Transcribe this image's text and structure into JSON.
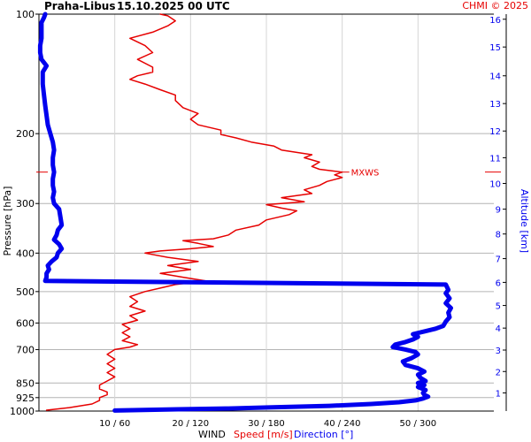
{
  "header": {
    "station": "Praha-Libus",
    "datetime": "15.10.2025 00 UTC",
    "credit": "CHMI © 2025"
  },
  "colors": {
    "speed": "#e60000",
    "direction": "#0000ee",
    "grid": "#b4b4b4",
    "axis": "#000000"
  },
  "chart_data": {
    "type": "line",
    "title": "Praha-Libus 15.10.2025 00 UTC",
    "ylabel": "Pressure [hPa]",
    "y2label": "Altitude [km]",
    "xlabel": {
      "prefix": "WIND",
      "speed": "Speed [m/s]",
      "direction": "Direction [°]"
    },
    "x_speed_range": [
      0,
      60
    ],
    "x_dir_range": [
      0,
      360
    ],
    "y_scale": "log",
    "y_pressure_range": [
      1000,
      100
    ],
    "x_ticks": [
      {
        "speed": 10,
        "dir": 60,
        "label": "10 / 60"
      },
      {
        "speed": 20,
        "dir": 120,
        "label": "20 / 120"
      },
      {
        "speed": 30,
        "dir": 180,
        "label": "30 / 180"
      },
      {
        "speed": 40,
        "dir": 240,
        "label": "40 / 240"
      },
      {
        "speed": 50,
        "dir": 300,
        "label": "50 / 300"
      }
    ],
    "pressure_ticks": [
      100,
      200,
      300,
      400,
      500,
      600,
      700,
      850,
      925,
      1000
    ],
    "altitude_ticks_km": [
      {
        "km": 1,
        "p": 900
      },
      {
        "km": 2,
        "p": 795
      },
      {
        "km": 3,
        "p": 702
      },
      {
        "km": 4,
        "p": 618
      },
      {
        "km": 5,
        "p": 542
      },
      {
        "km": 6,
        "p": 474
      },
      {
        "km": 7,
        "p": 413
      },
      {
        "km": 8,
        "p": 358
      },
      {
        "km": 9,
        "p": 310
      },
      {
        "km": 10,
        "p": 267
      },
      {
        "km": 11,
        "p": 230
      },
      {
        "km": 12,
        "p": 197
      },
      {
        "km": 13,
        "p": 168
      },
      {
        "km": 14,
        "p": 143
      },
      {
        "km": 15,
        "p": 121
      },
      {
        "km": 16,
        "p": 103
      }
    ],
    "mxws": {
      "label": "MXWS",
      "pressure": 250,
      "speed": 40
    },
    "grid": true,
    "series": [
      {
        "name": "Speed [m/s]",
        "key": "speed",
        "points": [
          [
            995,
            1
          ],
          [
            980,
            4
          ],
          [
            960,
            7
          ],
          [
            940,
            8
          ],
          [
            925,
            8
          ],
          [
            910,
            9
          ],
          [
            895,
            9
          ],
          [
            880,
            8
          ],
          [
            860,
            8
          ],
          [
            840,
            9
          ],
          [
            820,
            10
          ],
          [
            800,
            9
          ],
          [
            780,
            10
          ],
          [
            760,
            9
          ],
          [
            740,
            10
          ],
          [
            720,
            9
          ],
          [
            700,
            10
          ],
          [
            690,
            12
          ],
          [
            680,
            13
          ],
          [
            665,
            11
          ],
          [
            650,
            12
          ],
          [
            635,
            11
          ],
          [
            620,
            12
          ],
          [
            605,
            11
          ],
          [
            590,
            13
          ],
          [
            575,
            12
          ],
          [
            560,
            14
          ],
          [
            545,
            12
          ],
          [
            530,
            13
          ],
          [
            515,
            12
          ],
          [
            500,
            14
          ],
          [
            490,
            16
          ],
          [
            480,
            18
          ],
          [
            470,
            22
          ],
          [
            460,
            19
          ],
          [
            450,
            16
          ],
          [
            440,
            20
          ],
          [
            430,
            17
          ],
          [
            420,
            21
          ],
          [
            410,
            17
          ],
          [
            400,
            14
          ],
          [
            395,
            16
          ],
          [
            390,
            20
          ],
          [
            385,
            23
          ],
          [
            378,
            21
          ],
          [
            372,
            19
          ],
          [
            368,
            23
          ],
          [
            360,
            25
          ],
          [
            350,
            26
          ],
          [
            340,
            29
          ],
          [
            330,
            30
          ],
          [
            320,
            33
          ],
          [
            313,
            34
          ],
          [
            308,
            32
          ],
          [
            302,
            30
          ],
          [
            297,
            35
          ],
          [
            290,
            32
          ],
          [
            283,
            36
          ],
          [
            277,
            35
          ],
          [
            270,
            37
          ],
          [
            264,
            38
          ],
          [
            258,
            40
          ],
          [
            254,
            39
          ],
          [
            250,
            40
          ],
          [
            246,
            37
          ],
          [
            242,
            36
          ],
          [
            236,
            37
          ],
          [
            230,
            35
          ],
          [
            226,
            36
          ],
          [
            220,
            32
          ],
          [
            215,
            31
          ],
          [
            210,
            28
          ],
          [
            205,
            26
          ],
          [
            201,
            24
          ],
          [
            196,
            24
          ],
          [
            190,
            21
          ],
          [
            184,
            20
          ],
          [
            178,
            21
          ],
          [
            172,
            19
          ],
          [
            165,
            18
          ],
          [
            160,
            18
          ],
          [
            155,
            16
          ],
          [
            150,
            14
          ],
          [
            146,
            12
          ],
          [
            143,
            13
          ],
          [
            140,
            15
          ],
          [
            136,
            15
          ],
          [
            130,
            13
          ],
          [
            125,
            15
          ],
          [
            120,
            14
          ],
          [
            115,
            12
          ],
          [
            111,
            15
          ],
          [
            107,
            17
          ],
          [
            104,
            18
          ],
          [
            101,
            17
          ],
          [
            100,
            16
          ]
        ]
      },
      {
        "name": "Direction [°]",
        "key": "direction",
        "points": [
          [
            997,
            60
          ],
          [
            990,
            110
          ],
          [
            985,
            150
          ],
          [
            978,
            185
          ],
          [
            970,
            230
          ],
          [
            960,
            263
          ],
          [
            950,
            285
          ],
          [
            940,
            298
          ],
          [
            930,
            304
          ],
          [
            920,
            308
          ],
          [
            910,
            305
          ],
          [
            900,
            304
          ],
          [
            885,
            306
          ],
          [
            870,
            300
          ],
          [
            860,
            305
          ],
          [
            850,
            300
          ],
          [
            840,
            306
          ],
          [
            825,
            302
          ],
          [
            810,
            300
          ],
          [
            795,
            305
          ],
          [
            780,
            300
          ],
          [
            765,
            290
          ],
          [
            750,
            288
          ],
          [
            735,
            295
          ],
          [
            720,
            300
          ],
          [
            710,
            298
          ],
          [
            700,
            290
          ],
          [
            690,
            280
          ],
          [
            680,
            282
          ],
          [
            670,
            290
          ],
          [
            660,
            296
          ],
          [
            650,
            300
          ],
          [
            640,
            296
          ],
          [
            630,
            305
          ],
          [
            620,
            314
          ],
          [
            610,
            320
          ],
          [
            595,
            322
          ],
          [
            580,
            325
          ],
          [
            565,
            324
          ],
          [
            550,
            326
          ],
          [
            535,
            322
          ],
          [
            520,
            325
          ],
          [
            505,
            322
          ],
          [
            495,
            324
          ],
          [
            480,
            322
          ],
          [
            470,
            5
          ],
          [
            460,
            6
          ],
          [
            450,
            6
          ],
          [
            440,
            8
          ],
          [
            430,
            7
          ],
          [
            420,
            10
          ],
          [
            410,
            14
          ],
          [
            400,
            15
          ],
          [
            390,
            18
          ],
          [
            380,
            16
          ],
          [
            370,
            12
          ],
          [
            360,
            14
          ],
          [
            350,
            15
          ],
          [
            340,
            18
          ],
          [
            325,
            17
          ],
          [
            310,
            16
          ],
          [
            300,
            12
          ],
          [
            290,
            11
          ],
          [
            280,
            12
          ],
          [
            270,
            11
          ],
          [
            260,
            11
          ],
          [
            250,
            12
          ],
          [
            240,
            11
          ],
          [
            230,
            11
          ],
          [
            220,
            12
          ],
          [
            210,
            11
          ],
          [
            200,
            9
          ],
          [
            190,
            7
          ],
          [
            180,
            6
          ],
          [
            170,
            5
          ],
          [
            160,
            4
          ],
          [
            150,
            3
          ],
          [
            140,
            3
          ],
          [
            135,
            6
          ],
          [
            130,
            2
          ],
          [
            125,
            1
          ],
          [
            120,
            1
          ],
          [
            115,
            2
          ],
          [
            110,
            2
          ],
          [
            105,
            2
          ],
          [
            102,
            4
          ],
          [
            100,
            5
          ]
        ]
      }
    ]
  }
}
